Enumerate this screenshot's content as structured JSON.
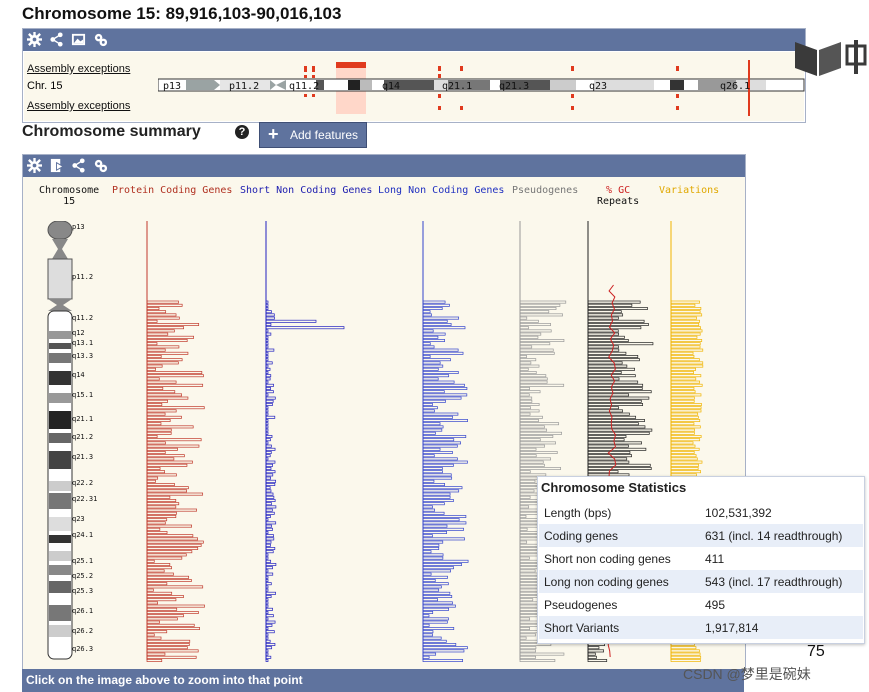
{
  "title": "Chromosome 15: 89,916,103-90,016,103",
  "overview": {
    "assembly_top": "Assembly exceptions",
    "chr_label": "Chr. 15",
    "assembly_bottom": "Assembly exceptions",
    "bands": [
      "p13",
      "p11.2",
      "q11.2",
      "q14",
      "q21.1",
      "q21.3",
      "q23",
      "q26.1"
    ]
  },
  "summary": {
    "title": "Chromosome summary",
    "help_icon": "question-icon",
    "add_features": "Add features"
  },
  "columns": {
    "chromosome": "Chromosome",
    "chromosome_num": "15",
    "protein": "Protein Coding Genes",
    "short_nc": "Short Non Coding Genes",
    "long_nc": "Long Non Coding Genes",
    "pseudo": "Pseudogenes",
    "gc": "% GC",
    "repeats": "Repeats",
    "variations": "Variations"
  },
  "ideogram_bands": [
    "p13",
    "p11.2",
    "q11.2",
    "q12",
    "q13.1",
    "q13.3",
    "q14",
    "q15.1",
    "q21.1",
    "q21.2",
    "q21.3",
    "q22.2",
    "q22.31",
    "q23",
    "q24.1",
    "q25.1",
    "q25.2",
    "q25.3",
    "q26.1",
    "q26.2",
    "q26.3"
  ],
  "footer": "Click on the image above to zoom into that point",
  "stats": {
    "title": "Chromosome Statistics",
    "rows": [
      {
        "label": "Length (bps)",
        "value": "102,531,392"
      },
      {
        "label": "Coding genes",
        "value": "631 (incl. 14 readthrough)"
      },
      {
        "label": "Short non coding genes",
        "value": "411"
      },
      {
        "label": "Long non coding genes",
        "value": "543 (incl. 17 readthrough)"
      },
      {
        "label": "Pseudogenes",
        "value": "495"
      },
      {
        "label": "Short Variants",
        "value": "1,917,814"
      }
    ]
  },
  "page_number": "75",
  "watermark": "CSDN @梦里是碗妹",
  "colors": {
    "bar": "#5f739e",
    "protein": "#c0392b",
    "short_nc": "#2020c0",
    "long_nc": "#3344cc",
    "pseudo": "#999999",
    "gc": "#cc2222",
    "repeats": "#222222",
    "variations": "#f0b400"
  }
}
